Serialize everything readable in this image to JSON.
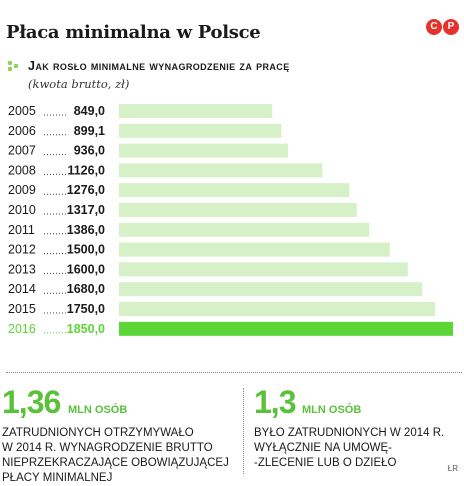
{
  "title": "Płaca minimalna w Polsce",
  "logo": "CP",
  "subtitle": "Jak rosło minimalne wynagrodzenie za pracę",
  "note": "(kwota brutto, zł)",
  "chart_data": {
    "type": "bar",
    "orientation": "horizontal",
    "categories": [
      "2005",
      "2006",
      "2007",
      "2008",
      "2009",
      "2010",
      "2011",
      "2012",
      "2013",
      "2014",
      "2015",
      "2016"
    ],
    "value_labels": [
      "849,0",
      "899,1",
      "936,0",
      "1126,0",
      "1276,0",
      "1317,0",
      "1386,0",
      "1500,0",
      "1600,0",
      "1680,0",
      "1750,0",
      "1850,0"
    ],
    "values": [
      849.0,
      899.1,
      936.0,
      1126.0,
      1276.0,
      1317.0,
      1386.0,
      1500.0,
      1600.0,
      1680.0,
      1750.0,
      1850.0
    ],
    "highlight_index": 11,
    "bar_color": "#d6f0c8",
    "highlight_color": "#5cd636",
    "highlight_text_color": "#5cd636",
    "xlim": [
      0,
      1850
    ],
    "grid": false,
    "legend": false
  },
  "stats": [
    {
      "number": "1,36",
      "unit": "MLN OSÓB",
      "lines": [
        "zatrudnionych otrzymywało",
        "w 2014 r. wynagrodzenie brutto",
        "nieprzekraczające obowiązującej",
        "płacy minimalnej"
      ]
    },
    {
      "number": "1,3",
      "unit": "MLN OSÓB",
      "lines": [
        "było zatrudnionych w 2014 r.",
        "wyłącznie na umowę-",
        "-zlecenie lub o dzieło"
      ]
    }
  ],
  "credit": "ŁR",
  "colors": {
    "accent": "#5cc13a",
    "logo": "#e5322d"
  }
}
